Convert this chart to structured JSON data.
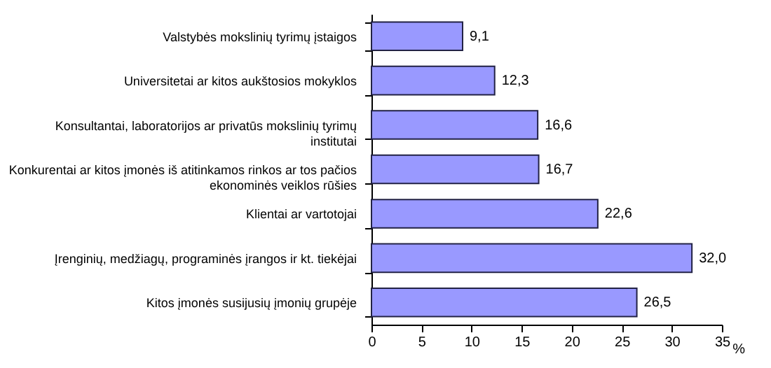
{
  "chart_data": {
    "type": "bar",
    "orientation": "horizontal",
    "xlabel": "%",
    "categories": [
      "Valstybės mokslinių tyrimų įstaigos",
      "Universitetai ar kitos aukštosios mokyklos",
      "Konsultantai, laboratorijos ar privatūs mokslinių tyrimų institutai",
      "Konkurentai ar kitos įmonės iš atitinkamos rinkos ar tos pačios ekonominės veiklos rūšies",
      "Klientai ar vartotojai",
      "Įrenginių, medžiagų, programinės įrangos ir kt. tiekėjai",
      "Kitos įmonės susijusių įmonių grupėje"
    ],
    "values": [
      9.1,
      12.3,
      16.6,
      16.7,
      22.6,
      32.0,
      26.5
    ],
    "value_labels": [
      "9,1",
      "12,3",
      "16,6",
      "16,7",
      "22,6",
      "32,0",
      "26,5"
    ],
    "color": "#9999ff",
    "xlim": [
      0,
      35
    ],
    "xticks": [
      0,
      5,
      10,
      15,
      20,
      25,
      30,
      35
    ],
    "grid": false
  }
}
